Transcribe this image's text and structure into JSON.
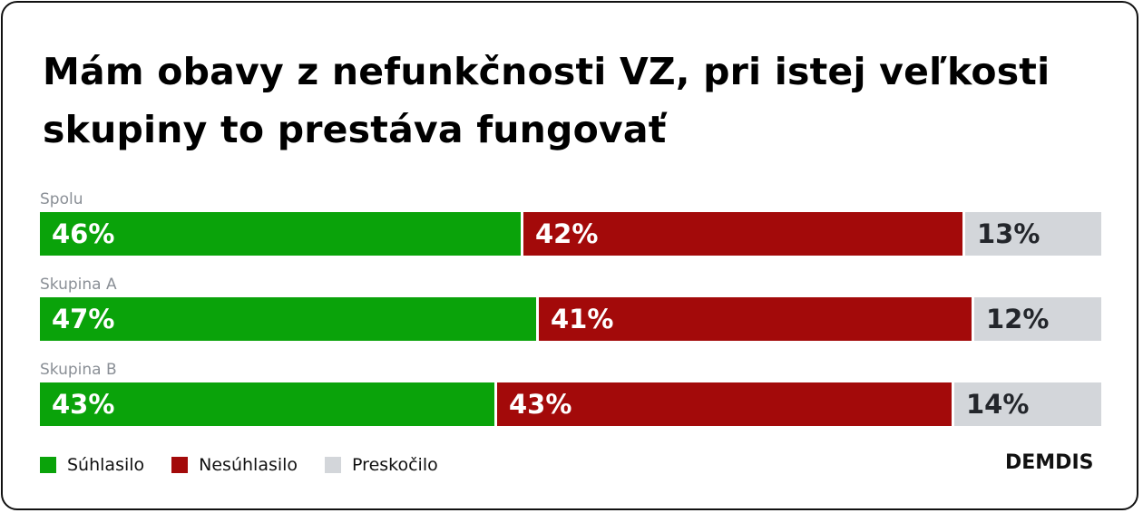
{
  "title": "Mám obavy z nefunkčnosti VZ, pri istej veľkosti skupiny to prestáva fungovať",
  "brand": "DEMDIS",
  "colors": {
    "agree": "#0aa30a",
    "disagree": "#a30a0a",
    "skip": "#d3d6da"
  },
  "chart_data": {
    "type": "bar",
    "orientation": "horizontal",
    "stacked": true,
    "normalized_to": 100,
    "title": "Mám obavy z nefunkčnosti VZ, pri istej veľkosti skupiny to prestáva fungovať",
    "categories": [
      "Spolu",
      "Skupina A",
      "Skupina B"
    ],
    "series": [
      {
        "name": "Súhlasilo",
        "values": [
          46,
          47,
          43
        ],
        "labels": [
          "46%",
          "47%",
          "43%"
        ]
      },
      {
        "name": "Nesúhlasilo",
        "values": [
          42,
          41,
          43
        ],
        "labels": [
          "42%",
          "41%",
          "43%"
        ]
      },
      {
        "name": "Preskočilo",
        "values": [
          13,
          12,
          14
        ],
        "labels": [
          "13%",
          "12%",
          "14%"
        ]
      }
    ],
    "legend_position": "bottom-left",
    "grid": false
  }
}
